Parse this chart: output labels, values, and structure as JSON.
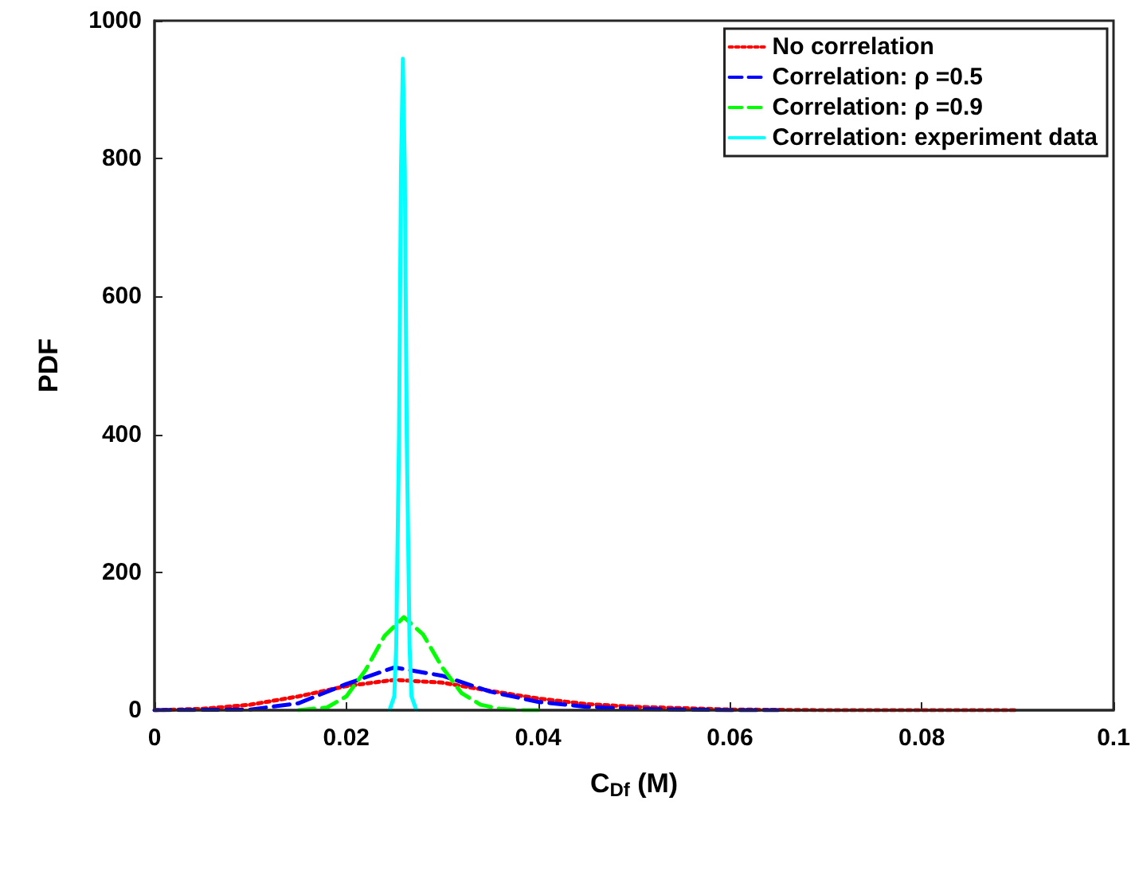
{
  "chart_data": {
    "type": "line",
    "xlabel": "C$_{Df}$ (M)",
    "ylabel": "PDF",
    "xlim": [
      0,
      0.1
    ],
    "xticks": [
      0,
      0.02,
      0.04,
      0.06,
      0.08,
      0.1
    ],
    "ylim": [
      0,
      1000
    ],
    "yticks": [
      0,
      200,
      400,
      600,
      800,
      1000
    ],
    "grid": false,
    "legend": "top right",
    "marker": "none",
    "series": [
      {
        "name": "No correlation",
        "color": "#ff0000",
        "line_style": "dotted",
        "x": [
          0,
          0.005,
          0.01,
          0.015,
          0.02,
          0.025,
          0.03,
          0.035,
          0.04,
          0.045,
          0.05,
          0.055,
          0.06,
          0.07,
          0.08,
          0.09
        ],
        "values": [
          0,
          2,
          8,
          20,
          35,
          44,
          40,
          28,
          17,
          9,
          5,
          3,
          1,
          0,
          0,
          0
        ]
      },
      {
        "name": "Correlation: ρ =0.5",
        "color": "#0000ff",
        "line_style": "dashed",
        "x": [
          0,
          0.01,
          0.015,
          0.02,
          0.025,
          0.03,
          0.035,
          0.04,
          0.045,
          0.05,
          0.06,
          0.065
        ],
        "values": [
          0,
          1,
          10,
          38,
          62,
          50,
          27,
          12,
          5,
          2,
          0,
          0
        ]
      },
      {
        "name": "Correlation: ρ =0.9",
        "color": "#00ff00",
        "line_style": "dashed",
        "x": [
          0.015,
          0.018,
          0.02,
          0.022,
          0.024,
          0.026,
          0.028,
          0.03,
          0.032,
          0.034,
          0.036,
          0.038,
          0.04
        ],
        "values": [
          0,
          4,
          20,
          58,
          108,
          135,
          110,
          62,
          25,
          8,
          2,
          0,
          0
        ]
      },
      {
        "name": "Correlation: experiment data",
        "color": "#00ffff",
        "line_style": "solid",
        "x": [
          0.0245,
          0.025,
          0.0252,
          0.0255,
          0.0257,
          0.0259,
          0.0261,
          0.0263,
          0.0266,
          0.0268,
          0.0273
        ],
        "values": [
          0,
          20,
          90,
          400,
          780,
          945,
          780,
          400,
          90,
          20,
          0
        ]
      }
    ]
  }
}
